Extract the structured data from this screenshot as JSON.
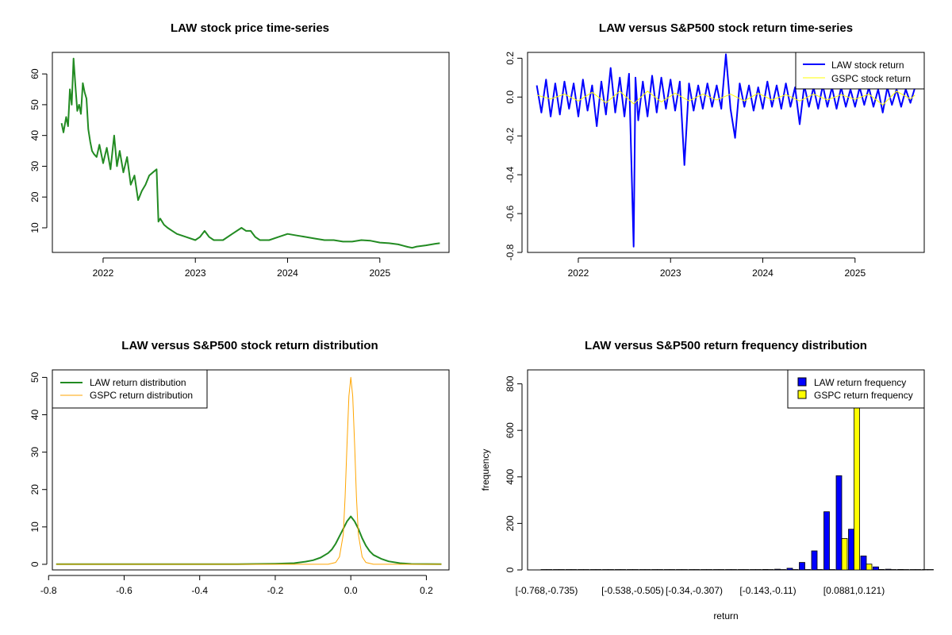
{
  "chart_data": [
    {
      "id": "price",
      "type": "line",
      "title": "LAW stock price time-series",
      "xlabel": "",
      "ylabel": "",
      "xlim": [
        2021.45,
        2025.75
      ],
      "ylim": [
        2,
        67
      ],
      "x_ticks": [
        2022,
        2023,
        2024,
        2025
      ],
      "x_tick_labels": [
        "2022",
        "2023",
        "2024",
        "2025"
      ],
      "y_ticks": [
        10,
        20,
        30,
        40,
        50,
        60
      ],
      "y_tick_labels": [
        "10",
        "20",
        "30",
        "40",
        "50",
        "60"
      ],
      "colors": {
        "line": "#228B22"
      },
      "series": [
        {
          "x": [
            2021.55,
            2021.57,
            2021.6,
            2021.62,
            2021.64,
            2021.66,
            2021.68,
            2021.7,
            2021.72,
            2021.74,
            2021.76,
            2021.78,
            2021.8,
            2021.82,
            2021.84,
            2021.86,
            2021.88,
            2021.9,
            2021.93,
            2021.96,
            2022.0,
            2022.04,
            2022.08,
            2022.12,
            2022.15,
            2022.18,
            2022.22,
            2022.26,
            2022.3,
            2022.34,
            2022.38,
            2022.42,
            2022.46,
            2022.5,
            2022.54,
            2022.58,
            2022.6,
            2022.62,
            2022.66,
            2022.7,
            2022.75,
            2022.8,
            2022.9,
            2023.0,
            2023.05,
            2023.1,
            2023.15,
            2023.2,
            2023.3,
            2023.4,
            2023.5,
            2023.55,
            2023.6,
            2023.65,
            2023.7,
            2023.8,
            2023.9,
            2024.0,
            2024.1,
            2024.2,
            2024.3,
            2024.4,
            2024.5,
            2024.6,
            2024.7,
            2024.8,
            2024.9,
            2025.0,
            2025.1,
            2025.2,
            2025.3,
            2025.35,
            2025.4,
            2025.5,
            2025.6,
            2025.65
          ],
          "y": [
            44,
            41,
            46,
            43,
            55,
            50,
            65,
            56,
            48,
            50,
            47,
            57,
            54,
            52,
            42,
            38,
            35,
            34,
            33,
            37,
            31,
            36,
            29,
            40,
            30,
            35,
            28,
            33,
            24,
            27,
            19,
            22,
            24,
            27,
            28,
            29,
            12,
            13,
            11,
            10,
            9,
            8,
            7,
            6,
            7,
            9,
            7,
            6,
            6,
            8,
            10,
            9,
            9,
            7,
            6,
            6,
            7,
            8,
            7.5,
            7,
            6.5,
            6,
            6,
            5.5,
            5.5,
            6,
            5.8,
            5.2,
            5.0,
            4.6,
            3.8,
            3.5,
            3.9,
            4.3,
            4.8,
            5.0
          ]
        }
      ]
    },
    {
      "id": "returns",
      "type": "line",
      "title": "LAW versus S&P500 stock return time-series",
      "xlabel": "",
      "ylabel": "",
      "xlim": [
        2021.45,
        2025.75
      ],
      "ylim": [
        -0.8,
        0.23
      ],
      "x_ticks": [
        2022,
        2023,
        2024,
        2025
      ],
      "x_tick_labels": [
        "2022",
        "2023",
        "2024",
        "2025"
      ],
      "y_ticks": [
        -0.8,
        -0.6,
        -0.4,
        -0.2,
        0.0,
        0.2
      ],
      "y_tick_labels": [
        "-0.8",
        "-0.6",
        "-0.4",
        "-0.2",
        "0.0",
        "0.2"
      ],
      "legend_position": "top-right",
      "colors": {
        "law": "#0000FF",
        "gspc": "#FFFF00"
      },
      "series": [
        {
          "name": "LAW stock return",
          "x": [
            2021.55,
            2021.6,
            2021.65,
            2021.7,
            2021.75,
            2021.8,
            2021.85,
            2021.9,
            2021.95,
            2022.0,
            2022.05,
            2022.1,
            2022.15,
            2022.2,
            2022.25,
            2022.3,
            2022.35,
            2022.4,
            2022.45,
            2022.5,
            2022.55,
            2022.6,
            2022.62,
            2022.65,
            2022.7,
            2022.75,
            2022.8,
            2022.85,
            2022.9,
            2022.95,
            2023.0,
            2023.05,
            2023.1,
            2023.15,
            2023.2,
            2023.25,
            2023.3,
            2023.35,
            2023.4,
            2023.45,
            2023.5,
            2023.55,
            2023.6,
            2023.65,
            2023.7,
            2023.75,
            2023.8,
            2023.85,
            2023.9,
            2023.95,
            2024.0,
            2024.05,
            2024.1,
            2024.15,
            2024.2,
            2024.25,
            2024.3,
            2024.35,
            2024.4,
            2024.45,
            2024.5,
            2024.55,
            2024.6,
            2024.65,
            2024.7,
            2024.75,
            2024.8,
            2024.85,
            2024.9,
            2024.95,
            2025.0,
            2025.05,
            2025.1,
            2025.15,
            2025.2,
            2025.25,
            2025.3,
            2025.35,
            2025.4,
            2025.45,
            2025.5,
            2025.55,
            2025.6,
            2025.65
          ],
          "y": [
            0.06,
            -0.08,
            0.09,
            -0.1,
            0.07,
            -0.09,
            0.08,
            -0.06,
            0.07,
            -0.1,
            0.09,
            -0.07,
            0.06,
            -0.15,
            0.08,
            -0.09,
            0.15,
            -0.08,
            0.1,
            -0.1,
            0.12,
            -0.77,
            0.1,
            -0.12,
            0.08,
            -0.1,
            0.11,
            -0.08,
            0.1,
            -0.06,
            0.09,
            -0.07,
            0.08,
            -0.35,
            0.07,
            -0.07,
            0.06,
            -0.06,
            0.07,
            -0.05,
            0.06,
            -0.06,
            0.22,
            -0.06,
            -0.21,
            0.07,
            -0.05,
            0.06,
            -0.07,
            0.05,
            -0.06,
            0.08,
            -0.05,
            0.06,
            -0.06,
            0.07,
            -0.05,
            0.05,
            -0.14,
            0.06,
            -0.05,
            0.05,
            -0.06,
            0.06,
            -0.05,
            0.05,
            -0.06,
            0.05,
            -0.05,
            0.04,
            -0.05,
            0.05,
            -0.04,
            0.05,
            -0.05,
            0.04,
            -0.08,
            0.05,
            -0.04,
            0.04,
            -0.05,
            0.04,
            -0.03,
            0.05
          ]
        },
        {
          "name": "GSPC stock return",
          "x": [
            2021.55,
            2021.7,
            2021.85,
            2022.0,
            2022.15,
            2022.3,
            2022.45,
            2022.6,
            2022.75,
            2022.9,
            2023.05,
            2023.2,
            2023.35,
            2023.5,
            2023.65,
            2023.8,
            2023.95,
            2024.1,
            2024.25,
            2024.4,
            2024.55,
            2024.7,
            2024.85,
            2025.0,
            2025.15,
            2025.3,
            2025.45,
            2025.6,
            2025.65
          ],
          "y": [
            0.01,
            -0.01,
            0.015,
            -0.02,
            0.025,
            -0.03,
            0.03,
            -0.035,
            0.03,
            -0.025,
            0.02,
            -0.02,
            0.015,
            -0.015,
            0.015,
            -0.02,
            0.02,
            -0.015,
            0.012,
            -0.02,
            0.015,
            -0.015,
            0.012,
            -0.012,
            0.015,
            -0.04,
            0.03,
            -0.01,
            0.01
          ]
        }
      ]
    },
    {
      "id": "density",
      "type": "line",
      "title": "LAW versus S&P500 stock return distribution",
      "xlabel": "",
      "ylabel": "",
      "xlim": [
        -0.79,
        0.26
      ],
      "ylim": [
        -1.5,
        52
      ],
      "x_ticks": [
        -0.8,
        -0.6,
        -0.4,
        -0.2,
        0.0,
        0.2
      ],
      "x_tick_labels": [
        "-0.8",
        "-0.6",
        "-0.4",
        "-0.2",
        "0.0",
        "0.2"
      ],
      "y_ticks": [
        0,
        10,
        20,
        30,
        40,
        50
      ],
      "y_tick_labels": [
        "0",
        "10",
        "20",
        "30",
        "40",
        "50"
      ],
      "legend_position": "top-left",
      "colors": {
        "law": "#228B22",
        "gspc": "#FFA500"
      },
      "series": [
        {
          "name": "LAW return distribution",
          "x": [
            -0.78,
            -0.5,
            -0.3,
            -0.2,
            -0.15,
            -0.12,
            -0.1,
            -0.08,
            -0.06,
            -0.05,
            -0.04,
            -0.03,
            -0.02,
            -0.01,
            0.0,
            0.01,
            0.02,
            0.03,
            0.04,
            0.05,
            0.06,
            0.08,
            0.1,
            0.13,
            0.16,
            0.24
          ],
          "y": [
            0.05,
            0.05,
            0.05,
            0.15,
            0.3,
            0.7,
            1.1,
            1.8,
            3.0,
            4.0,
            5.5,
            7.5,
            9.5,
            11.5,
            12.8,
            11.5,
            9.5,
            7.0,
            5.0,
            3.5,
            2.5,
            1.5,
            0.8,
            0.3,
            0.1,
            0.05
          ]
        },
        {
          "name": "GSPC return distribution",
          "x": [
            -0.78,
            -0.06,
            -0.04,
            -0.03,
            -0.02,
            -0.015,
            -0.01,
            -0.005,
            0.0,
            0.005,
            0.01,
            0.015,
            0.02,
            0.03,
            0.04,
            0.06,
            0.24
          ],
          "y": [
            0.0,
            0.0,
            0.5,
            2.0,
            8.0,
            18.0,
            32.0,
            45.0,
            50.0,
            45.0,
            32.0,
            18.0,
            8.0,
            2.0,
            0.5,
            0.0,
            0.0
          ]
        }
      ]
    },
    {
      "id": "histogram",
      "type": "bar",
      "title": "LAW versus S&P500 return frequency distribution",
      "xlabel": "return",
      "ylabel": "frequency",
      "ylim": [
        0,
        860
      ],
      "y_ticks": [
        0,
        200,
        400,
        600,
        800
      ],
      "y_tick_labels": [
        "0",
        "200",
        "400",
        "600",
        "800"
      ],
      "legend_position": "top-right",
      "colors": {
        "law": "#0000FF",
        "gspc": "#FFFF00"
      },
      "categories": [
        "[-0.768,-0.735)",
        "",
        "",
        "",
        "",
        "",
        "",
        "[-0.538,-0.505)",
        "",
        "",
        "",
        "",
        "[-0.34,-0.307)",
        "",
        "",
        "",
        "",
        "",
        "[-0.143,-0.11)",
        "",
        "",
        "",
        "",
        "",
        "",
        "[0.0881,0.121)",
        "",
        "",
        "",
        "",
        "",
        ""
      ],
      "x_tick_labels": [
        "[-0.768,-0.735)",
        "[-0.538,-0.505)",
        "[-0.34,-0.307)",
        "[-0.143,-0.11)",
        "[0.0881,0.121)"
      ],
      "x_tick_indices": [
        0,
        7,
        12,
        18,
        25
      ],
      "series": [
        {
          "name": "LAW return frequency",
          "values": [
            1,
            0,
            0,
            0,
            0,
            0,
            0,
            0,
            0,
            0,
            0,
            0,
            0,
            1,
            0,
            0,
            0,
            0,
            2,
            3,
            7,
            32,
            82,
            250,
            405,
            175,
            60,
            13,
            3,
            2,
            1,
            0
          ]
        },
        {
          "name": "GSPC return frequency",
          "values": [
            0,
            0,
            0,
            0,
            0,
            0,
            0,
            0,
            0,
            0,
            0,
            0,
            0,
            0,
            0,
            0,
            0,
            0,
            0,
            0,
            0,
            0,
            0,
            0,
            135,
            700,
            25,
            2,
            0,
            0,
            0,
            0
          ]
        }
      ]
    }
  ]
}
